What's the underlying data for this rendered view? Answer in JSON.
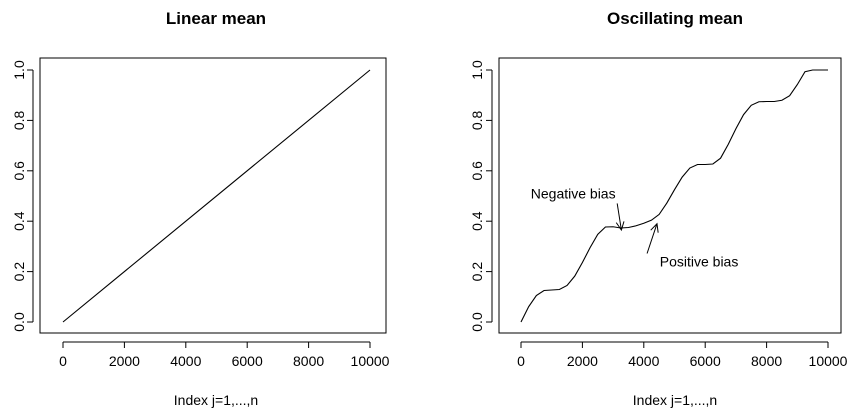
{
  "chart_data": [
    {
      "type": "line",
      "title": "Linear mean",
      "xlabel": "Index j=1,...,n",
      "ylabel": "",
      "xlim": [
        0,
        10000
      ],
      "ylim": [
        0,
        1
      ],
      "xticks": [
        "0",
        "2000",
        "4000",
        "6000",
        "8000",
        "10000"
      ],
      "yticks": [
        "0.0",
        "0.2",
        "0.4",
        "0.6",
        "0.8",
        "1.0"
      ],
      "grid": false,
      "series": [
        {
          "x": [
            0,
            10000
          ],
          "y": [
            0,
            1
          ]
        }
      ],
      "annotations": []
    },
    {
      "type": "line",
      "title": "Oscillating mean",
      "xlabel": "Index j=1,...,n",
      "ylabel": "",
      "xlim": [
        0,
        10000
      ],
      "ylim": [
        0,
        1
      ],
      "xticks": [
        "0",
        "2000",
        "4000",
        "6000",
        "8000",
        "10000"
      ],
      "yticks": [
        "0.0",
        "0.2",
        "0.4",
        "0.6",
        "0.8",
        "1.0"
      ],
      "grid": false,
      "series": [
        {
          "x": [
            0,
            250,
            500,
            750,
            1000,
            1250,
            1500,
            1750,
            2000,
            2250,
            2500,
            2750,
            3000,
            3250,
            3500,
            3750,
            4000,
            4250,
            4500,
            4750,
            5000,
            5250,
            5500,
            5750,
            6000,
            6250,
            6500,
            6750,
            7000,
            7250,
            7500,
            7750,
            8000,
            8250,
            8500,
            8750,
            9000,
            9250,
            9500,
            9750,
            10000
          ],
          "y": [
            0.0,
            0.061,
            0.105,
            0.125,
            0.127,
            0.129,
            0.145,
            0.182,
            0.236,
            0.295,
            0.348,
            0.377,
            0.378,
            0.373,
            0.375,
            0.382,
            0.392,
            0.404,
            0.427,
            0.472,
            0.525,
            0.575,
            0.611,
            0.625,
            0.625,
            0.627,
            0.65,
            0.705,
            0.767,
            0.823,
            0.86,
            0.874,
            0.875,
            0.875,
            0.88,
            0.898,
            0.942,
            0.993,
            1.0,
            1.0,
            1.0
          ]
        }
      ],
      "annotations": [
        {
          "text": "Negative bias",
          "text_x": 1700,
          "text_y": 0.51,
          "arrow_to_x": 3270,
          "arrow_to_y": 0.365
        },
        {
          "text": "Positive bias",
          "text_x": 5800,
          "text_y": 0.24,
          "arrow_to_x": 4430,
          "arrow_to_y": 0.39
        }
      ]
    }
  ]
}
